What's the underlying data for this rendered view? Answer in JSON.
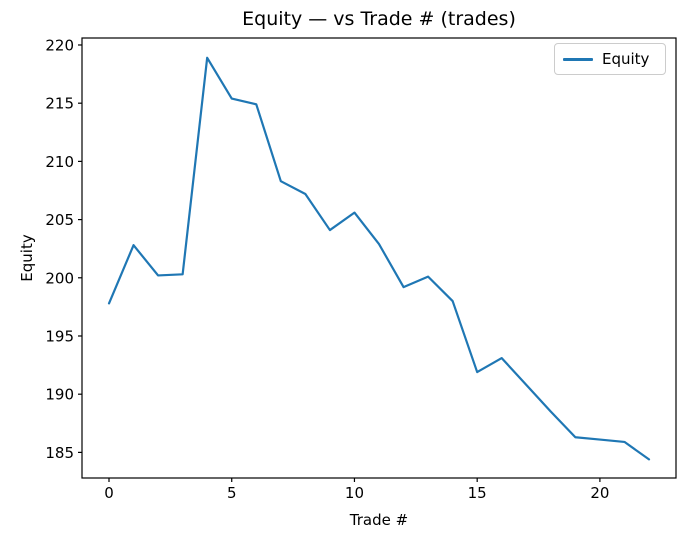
{
  "colors": {
    "line": "#1f77b4",
    "text": "#000000",
    "spine": "#000000",
    "legend_border": "#cccccc",
    "background": "#ffffff"
  },
  "chart_data": {
    "type": "line",
    "title": "Equity — vs Trade # (trades)",
    "xlabel": "Trade #",
    "ylabel": "Equity",
    "x": [
      0,
      1,
      2,
      3,
      4,
      5,
      6,
      7,
      8,
      9,
      10,
      11,
      12,
      13,
      14,
      15,
      16,
      17,
      18,
      19,
      20,
      21,
      22
    ],
    "series": [
      {
        "name": "Equity",
        "color": "#1f77b4",
        "values": [
          197.8,
          202.8,
          200.2,
          200.3,
          218.9,
          215.4,
          214.9,
          208.3,
          207.2,
          204.1,
          205.6,
          202.9,
          199.2,
          200.1,
          198.0,
          191.9,
          193.1,
          190.8,
          188.5,
          186.3,
          186.1,
          185.9,
          184.4
        ]
      }
    ],
    "xlim": [
      -1.1,
      23.1
    ],
    "ylim": [
      182.8,
      220.6
    ],
    "xticks": [
      0,
      5,
      10,
      15,
      20
    ],
    "yticks": [
      185,
      190,
      195,
      200,
      205,
      210,
      215,
      220
    ],
    "grid": false,
    "legend": {
      "entries": [
        "Equity"
      ],
      "position": "upper right"
    }
  }
}
